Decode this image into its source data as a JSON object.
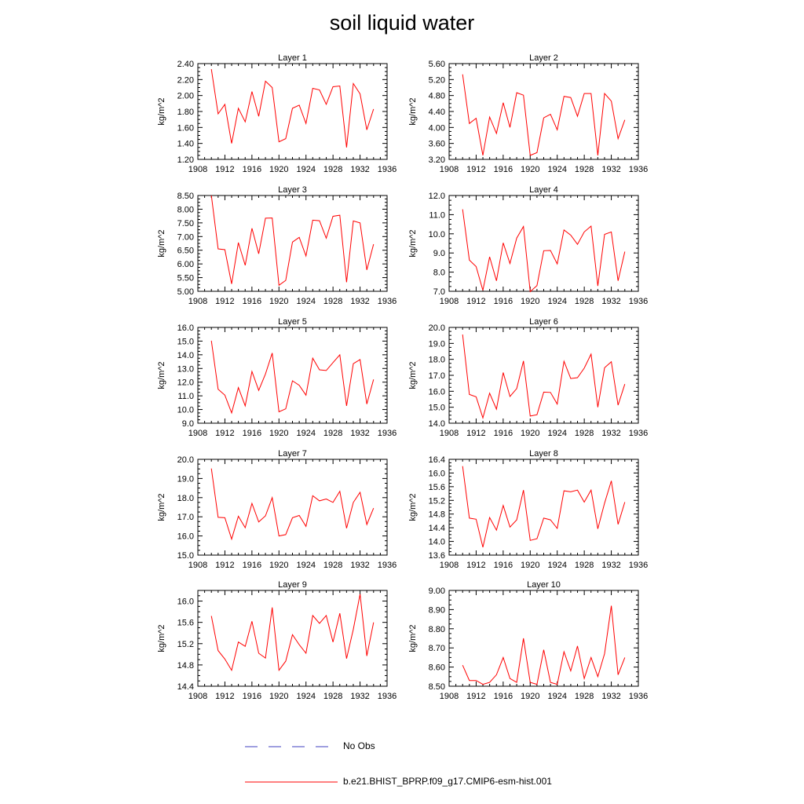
{
  "title": "soil liquid water",
  "colors": {
    "model": "#ff0000",
    "obs": "#4040c0",
    "axis": "#000000"
  },
  "legend": {
    "items": [
      {
        "label": "No Obs",
        "style": "dashed",
        "color": "#4040c0"
      },
      {
        "label": "b.e21.BHIST_BPRP.f09_g17.CMIP6-esm-hist.001",
        "style": "solid",
        "color": "#ff0000"
      }
    ]
  },
  "chart_data": [
    {
      "type": "line",
      "title": "Layer 1",
      "ylabel": "kg/m^2",
      "xlim": [
        1908,
        1936
      ],
      "x_ticks": [
        1908,
        1912,
        1916,
        1920,
        1924,
        1928,
        1932,
        1936
      ],
      "ylim": [
        1.2,
        2.4
      ],
      "y_ticks": [
        "1.20",
        "1.40",
        "1.60",
        "1.80",
        "2.00",
        "2.20",
        "2.40"
      ],
      "x": [
        1910,
        1911,
        1912,
        1913,
        1914,
        1915,
        1916,
        1917,
        1918,
        1919,
        1920,
        1921,
        1922,
        1923,
        1924,
        1925,
        1926,
        1927,
        1928,
        1929,
        1930,
        1931,
        1932,
        1933,
        1934
      ],
      "series": [
        {
          "name": "b.e21.BHIST_BPRP.f09_g17.CMIP6-esm-hist.001",
          "values": [
            2.33,
            1.77,
            1.89,
            1.4,
            1.84,
            1.67,
            2.05,
            1.74,
            2.18,
            2.1,
            1.42,
            1.46,
            1.84,
            1.88,
            1.65,
            2.09,
            2.07,
            1.89,
            2.11,
            2.12,
            1.35,
            2.15,
            2.02,
            1.57,
            1.83
          ]
        }
      ]
    },
    {
      "type": "line",
      "title": "Layer 2",
      "ylabel": "kg/m^2",
      "xlim": [
        1908,
        1936
      ],
      "x_ticks": [
        1908,
        1912,
        1916,
        1920,
        1924,
        1928,
        1932,
        1936
      ],
      "ylim": [
        3.2,
        5.6
      ],
      "y_ticks": [
        "3.20",
        "3.60",
        "4.00",
        "4.40",
        "4.80",
        "5.20",
        "5.60"
      ],
      "x": [
        1910,
        1911,
        1912,
        1913,
        1914,
        1915,
        1916,
        1917,
        1918,
        1919,
        1920,
        1921,
        1922,
        1923,
        1924,
        1925,
        1926,
        1927,
        1928,
        1929,
        1930,
        1931,
        1932,
        1933,
        1934
      ],
      "series": [
        {
          "name": "b.e21.BHIST_BPRP.f09_g17.CMIP6-esm-hist.001",
          "values": [
            5.33,
            4.1,
            4.23,
            3.3,
            4.26,
            3.85,
            4.62,
            4.0,
            4.87,
            4.81,
            3.3,
            3.37,
            4.24,
            4.33,
            3.94,
            4.78,
            4.75,
            4.28,
            4.85,
            4.85,
            3.3,
            4.85,
            4.66,
            3.72,
            4.19
          ]
        }
      ]
    },
    {
      "type": "line",
      "title": "Layer 3",
      "ylabel": "kg/m^2",
      "xlim": [
        1908,
        1936
      ],
      "x_ticks": [
        1908,
        1912,
        1916,
        1920,
        1924,
        1928,
        1932,
        1936
      ],
      "ylim": [
        5.0,
        8.5
      ],
      "y_ticks": [
        "5.00",
        "5.50",
        "6.00",
        "6.50",
        "7.00",
        "7.50",
        "8.00",
        "8.50"
      ],
      "x": [
        1910,
        1911,
        1912,
        1913,
        1914,
        1915,
        1916,
        1917,
        1918,
        1919,
        1920,
        1921,
        1922,
        1923,
        1924,
        1925,
        1926,
        1927,
        1928,
        1929,
        1930,
        1931,
        1932,
        1933,
        1934
      ],
      "series": [
        {
          "name": "b.e21.BHIST_BPRP.f09_g17.CMIP6-esm-hist.001",
          "values": [
            8.5,
            6.55,
            6.52,
            5.27,
            6.78,
            5.95,
            7.3,
            6.37,
            7.67,
            7.68,
            5.22,
            5.4,
            6.8,
            6.97,
            6.29,
            7.6,
            7.58,
            6.94,
            7.74,
            7.78,
            5.33,
            7.57,
            7.5,
            5.78,
            6.72
          ]
        }
      ]
    },
    {
      "type": "line",
      "title": "Layer 4",
      "ylabel": "kg/m^2",
      "xlim": [
        1908,
        1936
      ],
      "x_ticks": [
        1908,
        1912,
        1916,
        1920,
        1924,
        1928,
        1932,
        1936
      ],
      "ylim": [
        7.0,
        12.0
      ],
      "y_ticks": [
        "7.0",
        "8.0",
        "9.0",
        "10.0",
        "11.0",
        "12.0"
      ],
      "x": [
        1910,
        1911,
        1912,
        1913,
        1914,
        1915,
        1916,
        1917,
        1918,
        1919,
        1920,
        1921,
        1922,
        1923,
        1924,
        1925,
        1926,
        1927,
        1928,
        1929,
        1930,
        1931,
        1932,
        1933,
        1934
      ],
      "series": [
        {
          "name": "b.e21.BHIST_BPRP.f09_g17.CMIP6-esm-hist.001",
          "values": [
            11.28,
            8.63,
            8.29,
            7.05,
            8.8,
            7.55,
            9.53,
            8.45,
            9.78,
            10.38,
            6.98,
            7.3,
            9.12,
            9.13,
            8.43,
            10.2,
            9.93,
            9.45,
            10.1,
            10.4,
            7.28,
            9.97,
            10.1,
            7.55,
            9.07
          ]
        }
      ]
    },
    {
      "type": "line",
      "title": "Layer 5",
      "ylabel": "kg/m^2",
      "xlim": [
        1908,
        1936
      ],
      "x_ticks": [
        1908,
        1912,
        1916,
        1920,
        1924,
        1928,
        1932,
        1936
      ],
      "ylim": [
        9.0,
        16.0
      ],
      "y_ticks": [
        "9.0",
        "10.0",
        "11.0",
        "12.0",
        "13.0",
        "14.0",
        "15.0",
        "16.0"
      ],
      "x": [
        1910,
        1911,
        1912,
        1913,
        1914,
        1915,
        1916,
        1917,
        1918,
        1919,
        1920,
        1921,
        1922,
        1923,
        1924,
        1925,
        1926,
        1927,
        1928,
        1929,
        1930,
        1931,
        1932,
        1933,
        1934
      ],
      "series": [
        {
          "name": "b.e21.BHIST_BPRP.f09_g17.CMIP6-esm-hist.001",
          "values": [
            15.03,
            11.48,
            11.05,
            9.75,
            11.6,
            10.27,
            12.78,
            11.4,
            12.6,
            14.13,
            9.83,
            10.05,
            12.1,
            11.77,
            11.05,
            13.75,
            12.9,
            12.85,
            13.43,
            14.0,
            10.27,
            13.35,
            13.65,
            10.4,
            12.2
          ]
        }
      ]
    },
    {
      "type": "line",
      "title": "Layer 6",
      "ylabel": "kg/m^2",
      "xlim": [
        1908,
        1936
      ],
      "x_ticks": [
        1908,
        1912,
        1916,
        1920,
        1924,
        1928,
        1932,
        1936
      ],
      "ylim": [
        14.0,
        20.0
      ],
      "y_ticks": [
        "14.0",
        "15.0",
        "16.0",
        "17.0",
        "18.0",
        "19.0",
        "20.0"
      ],
      "x": [
        1910,
        1911,
        1912,
        1913,
        1914,
        1915,
        1916,
        1917,
        1918,
        1919,
        1920,
        1921,
        1922,
        1923,
        1924,
        1925,
        1926,
        1927,
        1928,
        1929,
        1930,
        1931,
        1932,
        1933,
        1934
      ],
      "series": [
        {
          "name": "b.e21.BHIST_BPRP.f09_g17.CMIP6-esm-hist.001",
          "values": [
            19.55,
            15.8,
            15.65,
            14.33,
            15.88,
            14.88,
            17.17,
            15.67,
            16.17,
            17.9,
            14.45,
            14.53,
            15.95,
            15.93,
            15.2,
            17.88,
            16.8,
            16.85,
            17.45,
            18.33,
            15.0,
            17.47,
            17.85,
            15.13,
            16.45
          ]
        }
      ]
    },
    {
      "type": "line",
      "title": "Layer 7",
      "ylabel": "kg/m^2",
      "xlim": [
        1908,
        1936
      ],
      "x_ticks": [
        1908,
        1912,
        1916,
        1920,
        1924,
        1928,
        1932,
        1936
      ],
      "ylim": [
        15.0,
        20.0
      ],
      "y_ticks": [
        "15.0",
        "16.0",
        "17.0",
        "18.0",
        "19.0",
        "20.0"
      ],
      "x": [
        1910,
        1911,
        1912,
        1913,
        1914,
        1915,
        1916,
        1917,
        1918,
        1919,
        1920,
        1921,
        1922,
        1923,
        1924,
        1925,
        1926,
        1927,
        1928,
        1929,
        1930,
        1931,
        1932,
        1933,
        1934
      ],
      "series": [
        {
          "name": "b.e21.BHIST_BPRP.f09_g17.CMIP6-esm-hist.001",
          "values": [
            19.52,
            16.97,
            16.95,
            15.83,
            17.03,
            16.43,
            17.7,
            16.73,
            17.05,
            18.0,
            16.0,
            16.07,
            16.95,
            17.07,
            16.5,
            18.1,
            17.83,
            17.93,
            17.75,
            18.33,
            16.4,
            17.75,
            18.28,
            16.6,
            17.45
          ]
        }
      ]
    },
    {
      "type": "line",
      "title": "Layer 8",
      "ylabel": "kg/m^2",
      "xlim": [
        1908,
        1936
      ],
      "x_ticks": [
        1908,
        1912,
        1916,
        1920,
        1924,
        1928,
        1932,
        1936
      ],
      "ylim": [
        13.6,
        16.4
      ],
      "y_ticks": [
        "13.6",
        "14.0",
        "14.4",
        "14.8",
        "15.2",
        "15.6",
        "16.0",
        "16.4"
      ],
      "x": [
        1910,
        1911,
        1912,
        1913,
        1914,
        1915,
        1916,
        1917,
        1918,
        1919,
        1920,
        1921,
        1922,
        1923,
        1924,
        1925,
        1926,
        1927,
        1928,
        1929,
        1930,
        1931,
        1932,
        1933,
        1934
      ],
      "series": [
        {
          "name": "b.e21.BHIST_BPRP.f09_g17.CMIP6-esm-hist.001",
          "values": [
            16.2,
            14.68,
            14.65,
            13.83,
            14.7,
            14.33,
            15.05,
            14.42,
            14.63,
            15.5,
            14.03,
            14.08,
            14.68,
            14.63,
            14.38,
            15.48,
            15.45,
            15.5,
            15.15,
            15.5,
            14.37,
            15.12,
            15.77,
            14.5,
            15.15
          ]
        }
      ]
    },
    {
      "type": "line",
      "title": "Layer 9",
      "ylabel": "kg/m^2",
      "xlim": [
        1908,
        1936
      ],
      "x_ticks": [
        1908,
        1912,
        1916,
        1920,
        1924,
        1928,
        1932,
        1936
      ],
      "ylim": [
        14.4,
        16.2
      ],
      "y_ticks": [
        "14.4",
        "14.8",
        "15.2",
        "15.6",
        "16.0"
      ],
      "x": [
        1910,
        1911,
        1912,
        1913,
        1914,
        1915,
        1916,
        1917,
        1918,
        1919,
        1920,
        1921,
        1922,
        1923,
        1924,
        1925,
        1926,
        1927,
        1928,
        1929,
        1930,
        1931,
        1932,
        1933,
        1934
      ],
      "series": [
        {
          "name": "b.e21.BHIST_BPRP.f09_g17.CMIP6-esm-hist.001",
          "values": [
            15.72,
            15.07,
            14.91,
            14.7,
            15.23,
            15.15,
            15.62,
            15.02,
            14.93,
            15.88,
            14.7,
            14.87,
            15.37,
            15.18,
            15.02,
            15.73,
            15.58,
            15.73,
            15.23,
            15.77,
            14.92,
            15.47,
            16.13,
            14.97,
            15.6
          ]
        }
      ]
    },
    {
      "type": "line",
      "title": "Layer 10",
      "ylabel": "kg/m^2",
      "xlim": [
        1908,
        1936
      ],
      "x_ticks": [
        1908,
        1912,
        1916,
        1920,
        1924,
        1928,
        1932,
        1936
      ],
      "ylim": [
        8.5,
        9.0
      ],
      "y_ticks": [
        "8.50",
        "8.60",
        "8.70",
        "8.80",
        "8.90",
        "9.00"
      ],
      "x": [
        1910,
        1911,
        1912,
        1913,
        1914,
        1915,
        1916,
        1917,
        1918,
        1919,
        1920,
        1921,
        1922,
        1923,
        1924,
        1925,
        1926,
        1927,
        1928,
        1929,
        1930,
        1931,
        1932,
        1933,
        1934
      ],
      "series": [
        {
          "name": "b.e21.BHIST_BPRP.f09_g17.CMIP6-esm-hist.001",
          "values": [
            8.61,
            8.53,
            8.53,
            8.51,
            8.52,
            8.56,
            8.65,
            8.54,
            8.52,
            8.75,
            8.52,
            8.51,
            8.69,
            8.52,
            8.51,
            8.68,
            8.58,
            8.71,
            8.54,
            8.65,
            8.55,
            8.67,
            8.92,
            8.56,
            8.65
          ]
        }
      ]
    }
  ]
}
